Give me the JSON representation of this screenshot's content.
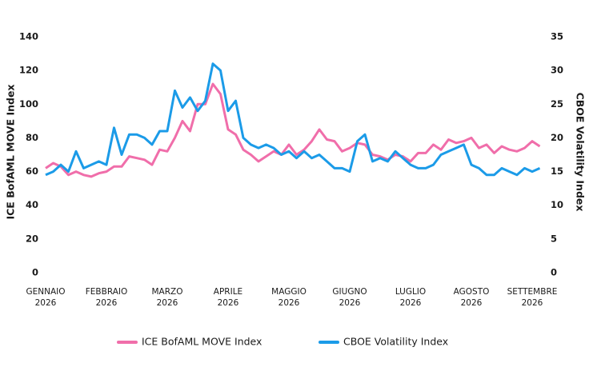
{
  "chart_data": {
    "type": "line",
    "categories": [
      "GENNAIO 2026",
      null,
      null,
      null,
      null,
      null,
      null,
      null,
      "FEBBRAIO 2026",
      null,
      null,
      null,
      null,
      null,
      null,
      null,
      "MARZO 2026",
      null,
      null,
      null,
      null,
      null,
      null,
      null,
      "APRILE 2026",
      null,
      null,
      null,
      null,
      null,
      null,
      null,
      "MAGGIO 2026",
      null,
      null,
      null,
      null,
      null,
      null,
      null,
      "GIUGNO 2026",
      null,
      null,
      null,
      null,
      null,
      null,
      null,
      "LUGLIO 2026",
      null,
      null,
      null,
      null,
      null,
      null,
      null,
      "AGOSTO 2026",
      null,
      null,
      null,
      null,
      null,
      null,
      null,
      "SETTEMBRE 2026",
      null
    ],
    "ylabel": "ICE BofAML MOVE Index",
    "y2label": "CBOE Volatility Index",
    "ylim": [
      0,
      140
    ],
    "yticks": [
      0,
      20,
      40,
      60,
      80,
      100,
      120,
      140
    ],
    "y2lim": [
      0,
      35
    ],
    "y2ticks": [
      0,
      5,
      10,
      15,
      20,
      25,
      30,
      35
    ],
    "grid": false,
    "legend": "bottom",
    "series": [
      {
        "name": "ICE BofAML MOVE Index",
        "color": "#f06eaa",
        "axis": "y",
        "values": [
          62,
          65,
          63,
          58,
          60,
          58,
          57,
          59,
          60,
          63,
          63,
          69,
          68,
          67,
          64,
          73,
          72,
          80,
          90,
          84,
          100,
          100,
          112,
          106,
          85,
          82,
          73,
          70,
          66,
          69,
          72,
          70,
          76,
          70,
          73,
          78,
          85,
          79,
          78,
          72,
          74,
          77,
          76,
          70,
          69,
          67,
          70,
          69,
          66,
          71,
          71,
          76,
          73,
          79,
          77,
          78,
          80,
          74,
          76,
          71,
          75,
          73,
          72,
          74,
          78,
          75
        ]
      },
      {
        "name": "CBOE Volatility Index",
        "color": "#1b9be8",
        "axis": "y2",
        "values": [
          14.5,
          15,
          16,
          15,
          18,
          15.5,
          16,
          16.5,
          16,
          21.5,
          17.5,
          20.5,
          20.5,
          20,
          19,
          21,
          21,
          27,
          24.5,
          26,
          24,
          25.5,
          31,
          30,
          24,
          25.5,
          20,
          19,
          18.5,
          19,
          18.5,
          17.5,
          18,
          17,
          18,
          17,
          17.5,
          16.5,
          15.5,
          15.5,
          15,
          19.5,
          20.5,
          16.5,
          17,
          16.5,
          18,
          17,
          16,
          15.5,
          15.5,
          16,
          17.5,
          18,
          18.5,
          19,
          16,
          15.5,
          14.5,
          14.5,
          15.5,
          15,
          14.5,
          15.5,
          15,
          15.5
        ]
      }
    ]
  }
}
